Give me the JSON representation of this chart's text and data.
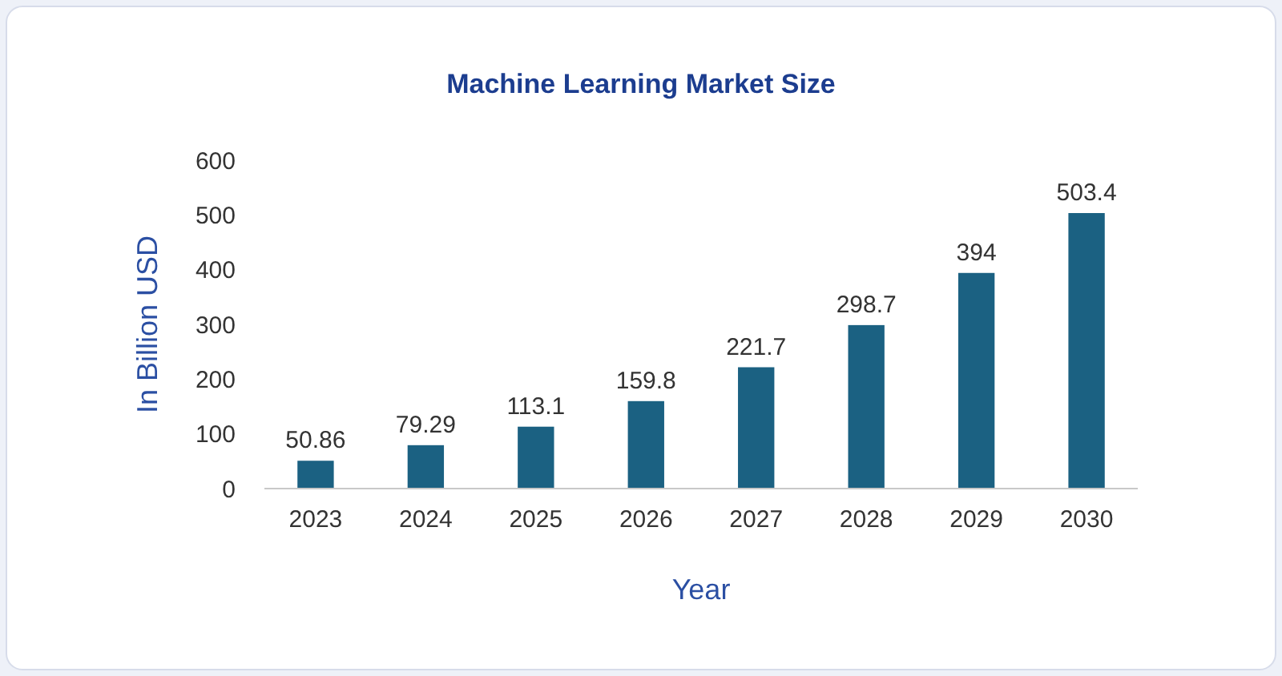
{
  "chart_data": {
    "type": "bar",
    "title": "Machine Learning Market Size",
    "xlabel": "Year",
    "ylabel": "In Billion USD",
    "categories": [
      "2023",
      "2024",
      "2025",
      "2026",
      "2027",
      "2028",
      "2029",
      "2030"
    ],
    "values": [
      50.86,
      79.29,
      113.1,
      159.8,
      221.7,
      298.7,
      394,
      503.4
    ],
    "color": "#1b6182",
    "ylim": [
      0,
      600
    ],
    "yticks": [
      0,
      100,
      200,
      300,
      400,
      500,
      600
    ],
    "data_labels": true,
    "grid": false
  }
}
